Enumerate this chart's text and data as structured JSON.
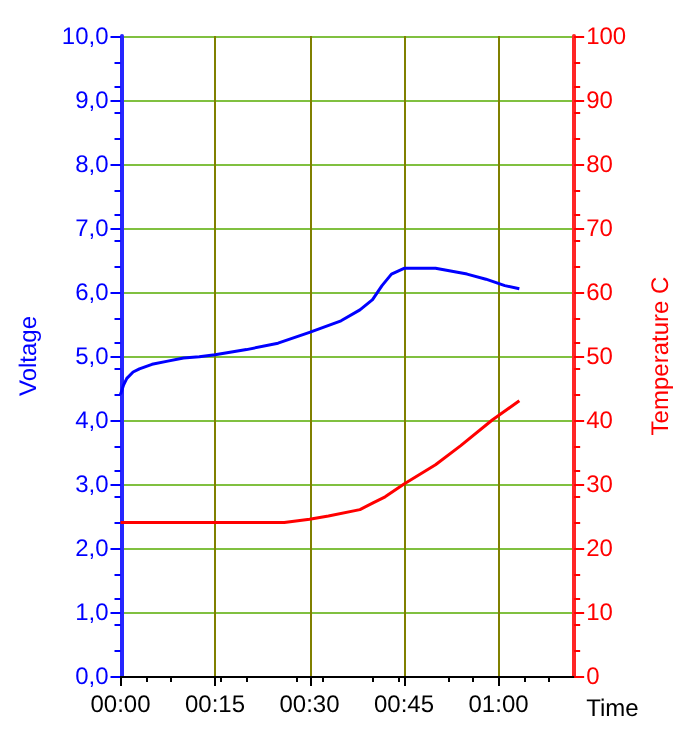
{
  "chart_data": {
    "type": "line",
    "xlabel": "Time",
    "ylabel": "Voltage",
    "y2label": "Temperature C",
    "xlim": [
      0,
      1.2
    ],
    "xticks": [
      {
        "value": 0,
        "label": "00:00"
      },
      {
        "value": 0.25,
        "label": "00:15"
      },
      {
        "value": 0.5,
        "label": "00:30"
      },
      {
        "value": 0.75,
        "label": "00:45"
      },
      {
        "value": 1,
        "label": "01:00"
      }
    ],
    "ylim": [
      0,
      10
    ],
    "yticks": [
      {
        "value": 0,
        "label": "0,0"
      },
      {
        "value": 1,
        "label": "1,0"
      },
      {
        "value": 2,
        "label": "2,0"
      },
      {
        "value": 3,
        "label": "3,0"
      },
      {
        "value": 4,
        "label": "4,0"
      },
      {
        "value": 5,
        "label": "5,0"
      },
      {
        "value": 6,
        "label": "6,0"
      },
      {
        "value": 7,
        "label": "7,0"
      },
      {
        "value": 8,
        "label": "8,0"
      },
      {
        "value": 9,
        "label": "9,0"
      },
      {
        "value": 10,
        "label": "10,0"
      }
    ],
    "y2lim": [
      0,
      100
    ],
    "y2ticks": [
      0,
      10,
      20,
      30,
      40,
      50,
      60,
      70,
      80,
      90,
      100
    ],
    "grid": true,
    "marker": "none",
    "line_style": "solid",
    "series": [
      {
        "color": "#0000ff",
        "x": [
          0,
          0.0083,
          0.0167,
          0.0333,
          0.05,
          0.0833,
          0.125,
          0.1667,
          0.2083,
          0.25,
          0.3333,
          0.4167,
          0.5,
          0.5833,
          0.6333,
          0.6667,
          0.6917,
          0.7167,
          0.75,
          0.8333,
          0.9167,
          0.9667,
          1.0167,
          1.055
        ],
        "values": [
          4.4,
          4.55,
          4.65,
          4.75,
          4.8,
          4.87,
          4.92,
          4.97,
          4.99,
          5.02,
          5.1,
          5.2,
          5.37,
          5.55,
          5.72,
          5.88,
          6.1,
          6.28,
          6.37,
          6.37,
          6.28,
          6.2,
          6.1,
          6.05
        ]
      },
      {
        "color": "#ff0000",
        "axis": "y2",
        "x": [
          0,
          0.25,
          0.4333,
          0.5,
          0.55,
          0.6333,
          0.6667,
          0.7,
          0.75,
          0.8333,
          0.9,
          0.9833,
          1.055
        ],
        "values": [
          24,
          24,
          24,
          24.5,
          25,
          26,
          27,
          28,
          30,
          33,
          36,
          40,
          43
        ]
      }
    ]
  }
}
